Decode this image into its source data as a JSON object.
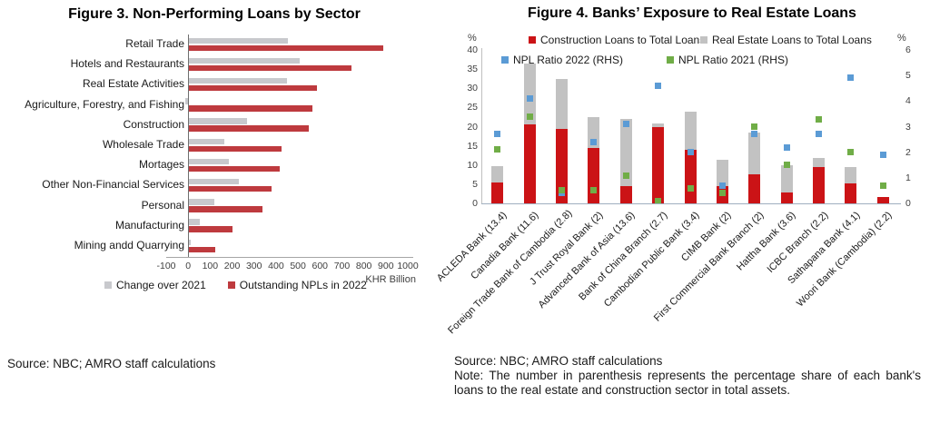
{
  "figure3": {
    "title": "Figure 3. Non-Performing Loans by Sector",
    "source": "Source: NBC; AMRO staff calculations"
  },
  "figure4": {
    "title": "Figure 4. Banks’ Exposure to Real Estate Loans",
    "source": "Source: NBC; AMRO staff calculations",
    "note": "Note: The number in parenthesis represents the percentage share of each bank's loans to the real estate and construction sector in total assets."
  },
  "chart_data": [
    {
      "type": "bar",
      "orientation": "horizontal",
      "title": "Figure 3. Non-Performing Loans by Sector",
      "categories": [
        "Retail Trade",
        "Hotels and Restaurants",
        "Real Estate Activities",
        "Agriculture, Forestry, and Fishing",
        "Construction",
        "Wholesale Trade",
        "Mortages",
        "Other Non-Financial Services",
        "Personal",
        "Manufacturing",
        "Mining andd Quarrying"
      ],
      "series": [
        {
          "name": "Change over 2021",
          "color": "#c8c9cd",
          "values": [
            455,
            510,
            450,
            -15,
            270,
            165,
            185,
            230,
            120,
            55,
            10
          ]
        },
        {
          "name": "Outstanding NPLs in 2022",
          "color": "#be3a3e",
          "values": [
            890,
            745,
            585,
            565,
            550,
            425,
            415,
            380,
            340,
            200,
            125
          ]
        }
      ],
      "xlabel": "KHR Billion",
      "xlim": [
        -100,
        1000
      ],
      "xticks": [
        -100,
        0,
        100,
        200,
        300,
        400,
        500,
        600,
        700,
        800,
        900,
        1000
      ],
      "grid": false,
      "legend_position": "bottom"
    },
    {
      "type": "bar",
      "subtype": "stacked-with-scatter-markers",
      "title": "Figure 4. Banks’ Exposure to Real Estate Loans",
      "categories": [
        "ACLEDA Bank (13.4)",
        "Canadia Bank (11.6)",
        "Foreign Trade Bank of Cambodia (2.8)",
        "J Trust Royal Bank (2)",
        "Advanced Bank of Asia (13.6)",
        "Bank of China Branch (2.7)",
        "Cambodian Public Bank (3.4)",
        "CIMB Bank (2)",
        "First Commercial Bank Branch (2)",
        "Hattha Bank (3.6)",
        "ICBC Branch (2.2)",
        "Sathapana Bank (4.1)",
        "Woori Bank (Cambodia) (2.2)"
      ],
      "series": [
        {
          "name": "Construction Loans to Total Loans",
          "type": "bar-stack",
          "axis": "left",
          "color": "#cb1316",
          "values": [
            5.5,
            20.5,
            19.5,
            14.5,
            4.5,
            19.8,
            14.0,
            4.5,
            7.5,
            2.8,
            9.5,
            5.2,
            1.7
          ]
        },
        {
          "name": "Real Estate Loans to Total Loans",
          "type": "bar-stack",
          "axis": "left",
          "color": "#c2c2c2",
          "values": [
            4.2,
            16.0,
            13.0,
            8.0,
            17.5,
            1.0,
            10.0,
            6.8,
            11.0,
            7.2,
            2.3,
            4.3,
            0
          ]
        },
        {
          "name": "NPL Ratio 2022 (RHS)",
          "type": "scatter",
          "axis": "right",
          "color": "#5b9bd5",
          "values": [
            2.7,
            4.1,
            0.4,
            2.4,
            3.1,
            4.6,
            2.0,
            0.7,
            2.7,
            2.2,
            2.7,
            4.9,
            1.9
          ]
        },
        {
          "name": "NPL Ratio 2021 (RHS)",
          "type": "scatter",
          "axis": "right",
          "color": "#70ad47",
          "values": [
            2.1,
            3.4,
            0.5,
            0.5,
            1.1,
            0.1,
            0.6,
            0.4,
            3.0,
            1.5,
            3.3,
            2.0,
            0.7
          ]
        }
      ],
      "left_axis": {
        "label": "%",
        "min": 0,
        "max": 40,
        "step": 5
      },
      "right_axis": {
        "label": "%",
        "min": 0,
        "max": 6,
        "step": 1
      },
      "grid": false,
      "legend_position": "top-inside"
    }
  ]
}
